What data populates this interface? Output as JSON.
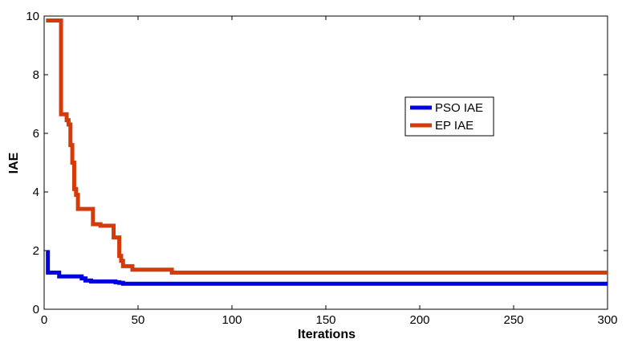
{
  "chart_data": {
    "type": "line",
    "title": "",
    "xlabel": "Iterations",
    "ylabel": "IAE",
    "xlim": [
      0,
      300
    ],
    "ylim": [
      0,
      10
    ],
    "xticks": [
      0,
      50,
      100,
      150,
      200,
      250,
      300
    ],
    "yticks": [
      0,
      2,
      4,
      6,
      8,
      10
    ],
    "grid": false,
    "legend_position": "right-center",
    "series": [
      {
        "name": "PSO IAE",
        "color": "#0000e0",
        "step": true,
        "x": [
          1,
          2,
          3,
          8,
          16,
          20,
          22,
          25,
          30,
          35,
          38,
          40,
          42,
          300
        ],
        "y": [
          1.95,
          1.25,
          1.25,
          1.12,
          1.12,
          1.05,
          0.98,
          0.95,
          0.95,
          0.95,
          0.92,
          0.9,
          0.87,
          0.87
        ]
      },
      {
        "name": "EP IAE",
        "color": "#d43a0a",
        "step": true,
        "x": [
          1,
          8,
          9,
          12,
          13,
          14,
          15,
          16,
          17,
          18,
          19,
          25,
          26,
          30,
          35,
          37,
          39,
          40,
          41,
          42,
          47,
          67,
          68,
          300
        ],
        "y": [
          9.85,
          9.85,
          6.65,
          6.45,
          6.3,
          5.6,
          5.0,
          4.1,
          3.9,
          3.42,
          3.42,
          3.42,
          2.9,
          2.85,
          2.85,
          2.45,
          2.45,
          1.82,
          1.65,
          1.47,
          1.35,
          1.35,
          1.25,
          1.25
        ]
      }
    ]
  }
}
